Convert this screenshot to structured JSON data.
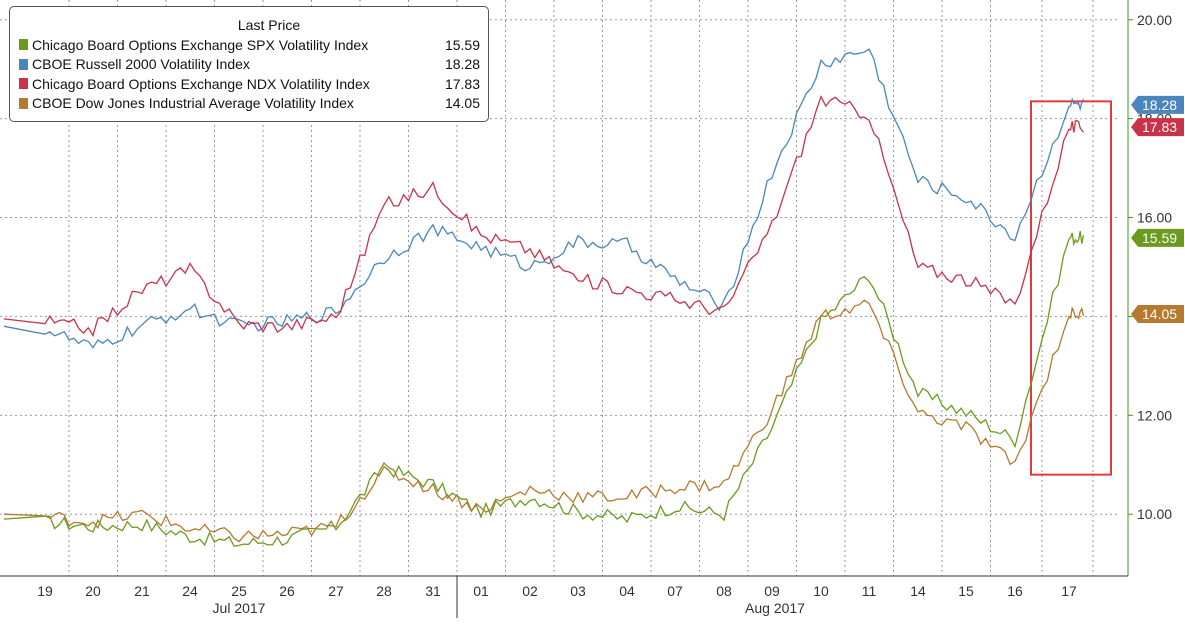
{
  "colors": {
    "background": "#ffffff",
    "grid": "#9a9a9a",
    "y_axis": "#3d9b1a",
    "highlight_box": "#e03b3b"
  },
  "chart_data": {
    "type": "line",
    "title": "",
    "xlabel": "",
    "ylabel": "",
    "ylim": [
      8.75,
      20.4
    ],
    "y_ticks": [
      "10.00",
      "12.00",
      "14.00",
      "16.00",
      "18.00",
      "20.00"
    ],
    "grid": true,
    "legend_position": "top-left",
    "legend": {
      "title": "Last Price"
    },
    "x_ticks": [
      "19",
      "20",
      "21",
      "24",
      "25",
      "26",
      "27",
      "28",
      "31",
      "01",
      "02",
      "03",
      "04",
      "07",
      "08",
      "09",
      "10",
      "11",
      "14",
      "15",
      "16",
      "17"
    ],
    "x_groups": [
      {
        "label": "Jul 2017",
        "first_tick": "19",
        "last_tick": "31"
      },
      {
        "label": "Aug 2017",
        "first_tick": "01",
        "last_tick": "17"
      }
    ],
    "highlight": {
      "shape": "rectangle",
      "x_from": "16",
      "x_to": "17",
      "y_from": 10.8,
      "y_to": 18.35
    },
    "series": [
      {
        "name": "Chicago Board Options Exchange SPX Volatility Index",
        "last": "15.59",
        "color": "#6a9b1f",
        "x": [
          "19",
          "20",
          "21",
          "24",
          "25",
          "26",
          "27",
          "28",
          "31",
          "01",
          "02",
          "03",
          "04",
          "07",
          "08",
          "09",
          "10",
          "11",
          "14",
          "15",
          "16",
          "17"
        ],
        "values": [
          9.85,
          9.75,
          9.8,
          9.55,
          9.4,
          9.5,
          9.75,
          10.95,
          10.6,
          10.05,
          10.35,
          10.05,
          9.9,
          10.15,
          10.0,
          11.75,
          13.9,
          14.85,
          12.45,
          12.05,
          11.5,
          15.59
        ]
      },
      {
        "name": "CBOE Russell 2000 Volatility Index",
        "last": "18.28",
        "color": "#4a86bd",
        "x": [
          "19",
          "20",
          "21",
          "24",
          "25",
          "26",
          "27",
          "28",
          "31",
          "01",
          "02",
          "03",
          "04",
          "07",
          "08",
          "09",
          "10",
          "11",
          "14",
          "15",
          "16",
          "17"
        ],
        "values": [
          13.75,
          13.35,
          13.8,
          14.15,
          13.8,
          13.9,
          14.1,
          15.2,
          15.75,
          15.4,
          15.0,
          15.5,
          15.45,
          14.75,
          14.2,
          16.9,
          19.1,
          19.4,
          16.75,
          16.4,
          15.6,
          18.28
        ]
      },
      {
        "name": "Chicago Board Options Exchange NDX Volatility Index",
        "last": "17.83",
        "color": "#c8334a",
        "x": [
          "19",
          "20",
          "21",
          "24",
          "25",
          "26",
          "27",
          "28",
          "31",
          "01",
          "02",
          "03",
          "04",
          "07",
          "08",
          "09",
          "10",
          "11",
          "14",
          "15",
          "16",
          "17"
        ],
        "values": [
          13.9,
          13.75,
          14.55,
          14.95,
          13.85,
          13.8,
          14.0,
          16.25,
          16.6,
          15.65,
          15.35,
          14.75,
          14.55,
          14.35,
          14.1,
          15.85,
          18.4,
          18.1,
          15.0,
          14.75,
          14.25,
          17.83
        ]
      },
      {
        "name": "CBOE Dow Jones Industrial Average Volatility Index",
        "last": "14.05",
        "color": "#b57a2e",
        "x": [
          "19",
          "20",
          "21",
          "24",
          "25",
          "26",
          "27",
          "28",
          "31",
          "01",
          "02",
          "03",
          "04",
          "07",
          "08",
          "09",
          "10",
          "11",
          "14",
          "15",
          "16",
          "17"
        ],
        "values": [
          9.95,
          9.85,
          10.0,
          9.7,
          9.55,
          9.6,
          9.75,
          10.9,
          10.5,
          10.1,
          10.5,
          10.35,
          10.35,
          10.55,
          10.6,
          12.1,
          14.0,
          14.25,
          12.05,
          11.75,
          11.0,
          14.05
        ]
      }
    ]
  }
}
